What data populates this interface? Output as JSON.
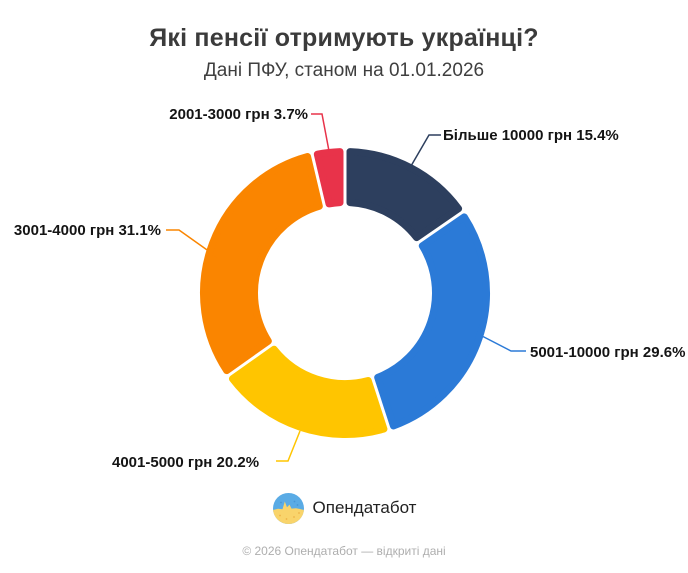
{
  "header": {
    "title": "Які пенсії отримують українці?",
    "subtitle": "Дані ПФУ, станом на 01.01.2026"
  },
  "chart_data": {
    "type": "pie",
    "subtype": "donut",
    "title": "Які пенсії отримують українці?",
    "subtitle": "Дані ПФУ, станом на 01.01.2026",
    "unit": "%",
    "inner_radius_pct": 60,
    "start_angle_deg": 0,
    "direction": "clockwise",
    "total": 100,
    "segments": [
      {
        "name": "Більше 10000 грн",
        "value": 15.4,
        "color": "#2d3f5e",
        "display": "Більше 10000 грн 15.4%"
      },
      {
        "name": "5001-10000 грн",
        "value": 29.6,
        "color": "#2b7ad7",
        "display": "5001-10000 грн 29.6%"
      },
      {
        "name": "4001-5000 грн",
        "value": 20.2,
        "color": "#ffc500",
        "display": "4001-5000 грн 20.2%"
      },
      {
        "name": "3001-4000 грн",
        "value": 31.1,
        "color": "#fa8500",
        "display": "3001-4000 грн 31.1%"
      },
      {
        "name": "2001-3000 грн",
        "value": 3.7,
        "color": "#e8334a",
        "display": "2001-3000 грн 3.7%"
      }
    ]
  },
  "branding": {
    "logo_text": "Опендатабот",
    "logo_icon": "opendatabot-flag-circle",
    "logo_blue": "#5aabe5",
    "logo_yellow": "#f9d46b"
  },
  "footer": {
    "copyright": "© 2026 Опендатабот — відкриті дані"
  }
}
